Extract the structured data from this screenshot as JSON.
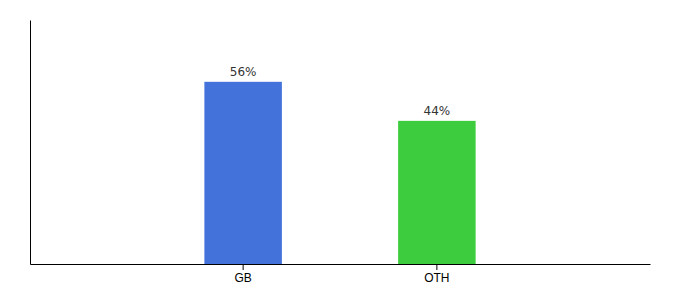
{
  "chart_data": {
    "type": "bar",
    "categories": [
      "GB",
      "OTH"
    ],
    "values": [
      56,
      44
    ],
    "value_labels": [
      "56%",
      "44%"
    ],
    "colors": [
      "#4472db",
      "#3dcc3d"
    ],
    "ylim": [
      0,
      75
    ],
    "data_labels": true,
    "tick_labels": "x"
  }
}
